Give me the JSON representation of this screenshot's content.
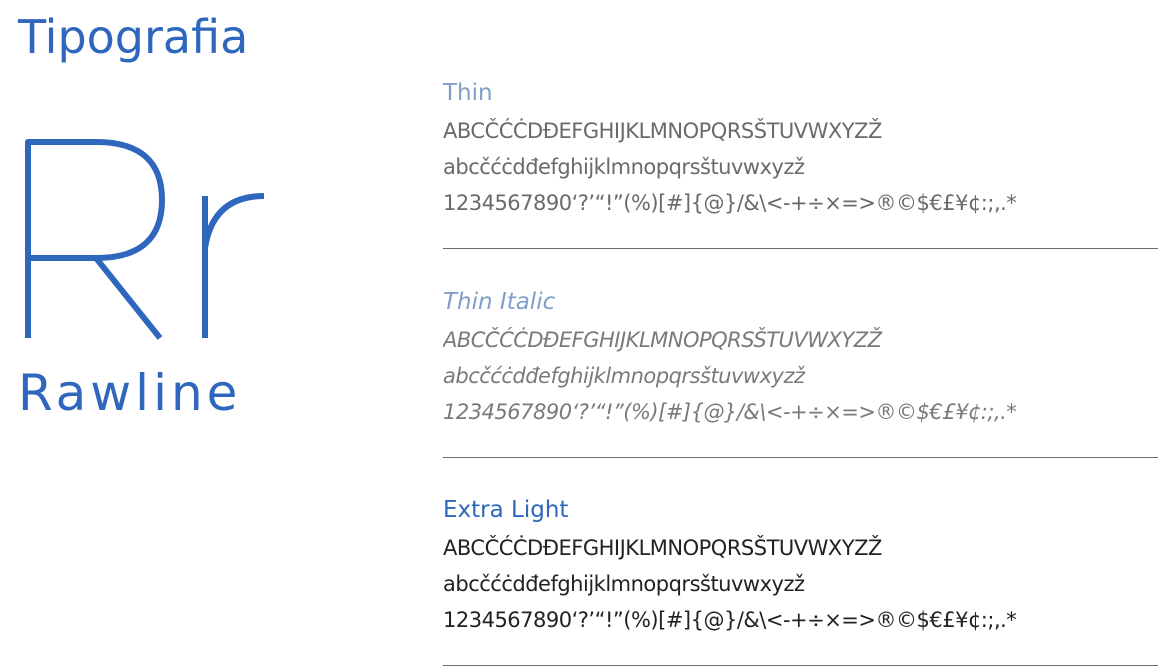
{
  "page": {
    "title": "Tipografia",
    "glyph_label": "Rr",
    "font_name": "Rawline",
    "accent_color": "#2e67bd",
    "muted_label_color": "#7f9fc6"
  },
  "weights": [
    {
      "name": "Thin",
      "uppercase": "ABCČĆĊDĐEFGHIJKLMNOPQRSŠTUVWXYZŽ",
      "lowercase": "abcčćċdđefghijklmnopqrsštuvwxyzž",
      "numerals": "1234567890‘?’“!”(%)[#]{@}/&\\<-+÷×=>®©$€£¥¢:;,.*"
    },
    {
      "name": "Thin Italic",
      "uppercase": "ABCČĆĊDĐEFGHIJKLMNOPQRSŠTUVWXYZŽ",
      "lowercase": "abcčćċdđefghijklmnopqrsštuvwxyzž",
      "numerals": "1234567890‘?’“!”(%)[#]{@}/&\\<-+÷×=>®©$€£¥¢:;,.*"
    },
    {
      "name": "Extra Light",
      "uppercase": "ABCČĆĊDĐEFGHIJKLMNOPQRSŠTUVWXYZŽ",
      "lowercase": "abcčćċdđefghijklmnopqrsštuvwxyzž",
      "numerals": "1234567890‘?’“!”(%)[#]{@}/&\\<-+÷×=>®©$€£¥¢:;,.*"
    }
  ]
}
